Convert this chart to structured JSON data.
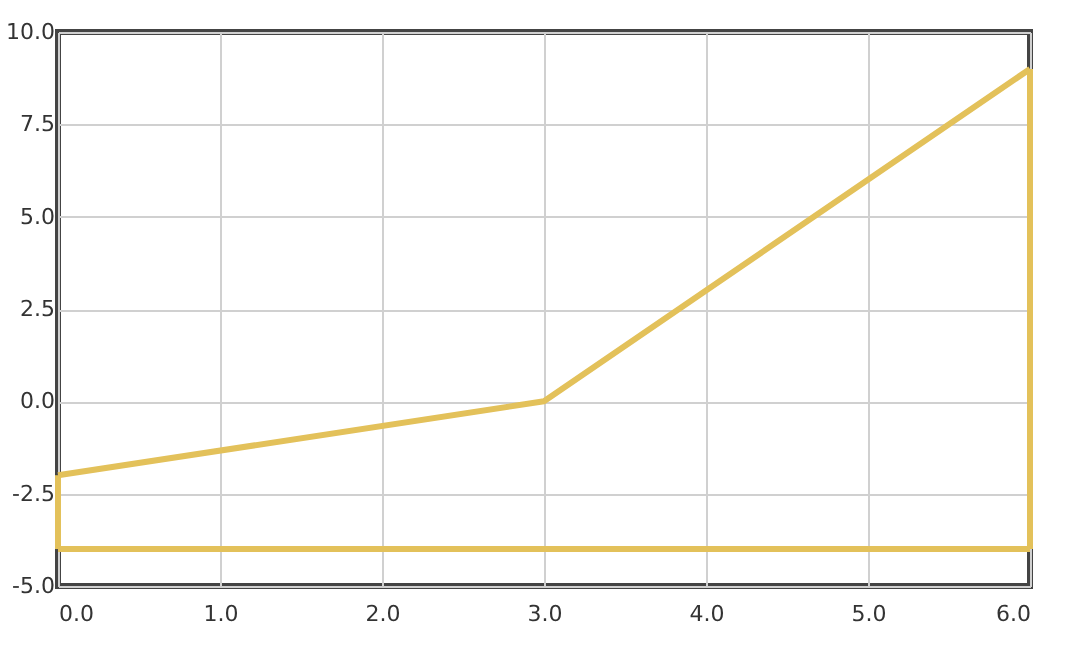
{
  "chart_data": {
    "type": "line",
    "series": [
      {
        "color": "#e3c15a",
        "x": [
          0,
          3,
          6
        ],
        "values": [
          -2,
          0,
          9
        ]
      },
      {
        "color": "#e3c15a",
        "x": [
          6,
          6
        ],
        "values": [
          9,
          -4
        ]
      },
      {
        "color": "#e3c15a",
        "x": [
          0,
          6
        ],
        "values": [
          -4,
          -4
        ]
      },
      {
        "color": "#e3c15a",
        "x": [
          0,
          0
        ],
        "values": [
          -4,
          -2
        ]
      }
    ],
    "xlim": [
      0,
      6
    ],
    "xticks": [
      {
        "value": 0,
        "label": "0.0"
      },
      {
        "value": 1,
        "label": "1.0"
      },
      {
        "value": 2,
        "label": "2.0"
      },
      {
        "value": 3,
        "label": "3.0"
      },
      {
        "value": 4,
        "label": "4.0"
      },
      {
        "value": 5,
        "label": "5.0"
      },
      {
        "value": 6,
        "label": "6.0"
      }
    ],
    "ylim": [
      -5,
      10
    ],
    "yticks": [
      {
        "value": -5,
        "label": "-5.0"
      },
      {
        "value": -2.5,
        "label": "-2.5"
      },
      {
        "value": 0,
        "label": "0.0"
      },
      {
        "value": 2.5,
        "label": "2.5"
      },
      {
        "value": 5,
        "label": "5.0"
      },
      {
        "value": 7.5,
        "label": "7.5"
      },
      {
        "value": 10,
        "label": "10.0"
      }
    ],
    "grid": true,
    "marker": "none",
    "line_style": "solid"
  }
}
